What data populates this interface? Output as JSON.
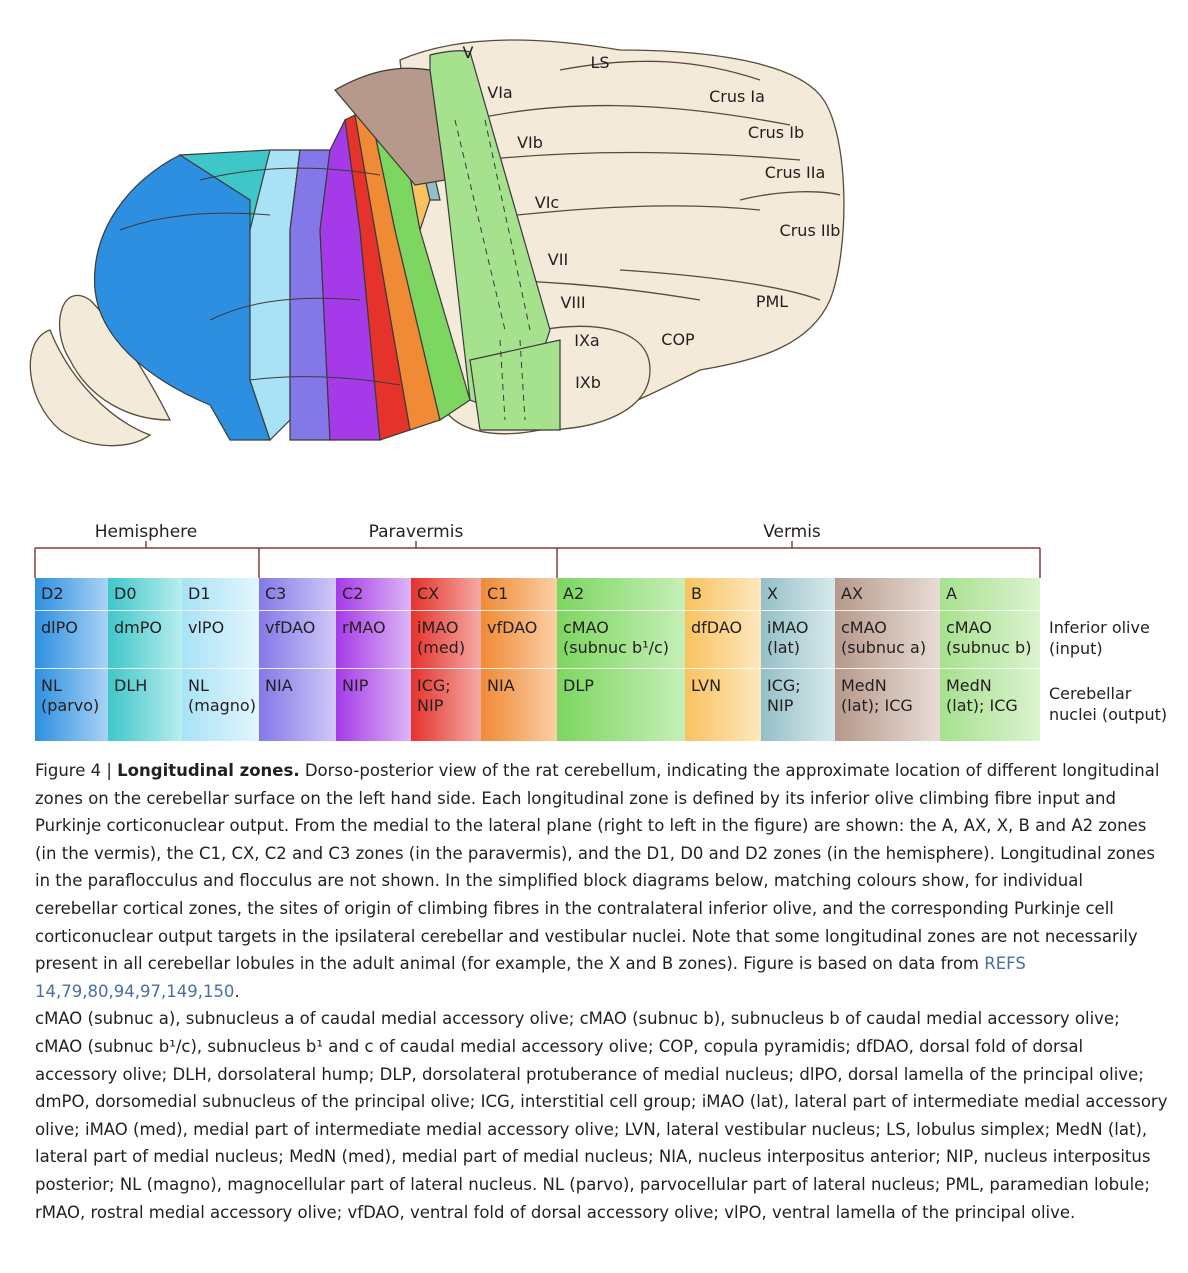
{
  "lobule_labels": [
    "V",
    "VIa",
    "VIb",
    "VIc",
    "VII",
    "VIII",
    "IXa",
    "IXb",
    "LS",
    "Crus Ia",
    "Crus Ib",
    "Crus IIa",
    "Crus IIb",
    "PML",
    "COP"
  ],
  "groups": {
    "hemisphere": "Hemisphere",
    "paravermis": "Paravermis",
    "vermis": "Vermis"
  },
  "row_labels": {
    "olive": [
      "Inferior olive",
      "(input)"
    ],
    "nuclei": [
      "Cerebellar",
      "nuclei (output)"
    ]
  },
  "zones": [
    {
      "name": "D2",
      "olive": [
        "dlPO"
      ],
      "nuclei": [
        "NL",
        "(parvo)"
      ],
      "colors": [
        "#2d8fe0",
        "#a9d3f5"
      ]
    },
    {
      "name": "D0",
      "olive": [
        "dmPO"
      ],
      "nuclei": [
        "DLH"
      ],
      "colors": [
        "#3fc6c9",
        "#b8eeee"
      ]
    },
    {
      "name": "D1",
      "olive": [
        "vlPO"
      ],
      "nuclei": [
        "NL",
        "(magno)"
      ],
      "colors": [
        "#a9e2f6",
        "#e2f6fd"
      ]
    },
    {
      "name": "C3",
      "olive": [
        "vfDAO"
      ],
      "nuclei": [
        "NIA"
      ],
      "colors": [
        "#8478e8",
        "#cfc9f7"
      ]
    },
    {
      "name": "C2",
      "olive": [
        "rMAO"
      ],
      "nuclei": [
        "NIP"
      ],
      "colors": [
        "#a53be8",
        "#dcb6f5"
      ]
    },
    {
      "name": "CX",
      "olive": [
        "iMAO",
        "(med)"
      ],
      "nuclei": [
        "ICG;",
        "NIP"
      ],
      "colors": [
        "#e5322b",
        "#f5aaa5"
      ]
    },
    {
      "name": "C1",
      "olive": [
        "vfDAO"
      ],
      "nuclei": [
        "NIA"
      ],
      "colors": [
        "#f08a35",
        "#fbcfa6"
      ]
    },
    {
      "name": "A2",
      "olive": [
        "cMAO",
        "(subnuc b¹/c)"
      ],
      "nuclei": [
        "DLP"
      ],
      "colors": [
        "#7cd65f",
        "#c6efb8"
      ]
    },
    {
      "name": "B",
      "olive": [
        "dfDAO"
      ],
      "nuclei": [
        "LVN"
      ],
      "colors": [
        "#f9c25f",
        "#fde8be"
      ]
    },
    {
      "name": "X",
      "olive": [
        "iMAO",
        "(lat)"
      ],
      "nuclei": [
        "ICG;",
        "NIP"
      ],
      "colors": [
        "#93bfc6",
        "#d8eaed"
      ]
    },
    {
      "name": "AX",
      "olive": [
        "cMAO",
        "(subnuc a)"
      ],
      "nuclei": [
        "MedN",
        "(lat); ICG"
      ],
      "colors": [
        "#b6998b",
        "#e8ddd6"
      ]
    },
    {
      "name": "A",
      "olive": [
        "cMAO",
        "(subnuc b)"
      ],
      "nuclei": [
        "MedN",
        "(lat); ICG"
      ],
      "colors": [
        "#a6e18e",
        "#dcf3d0"
      ]
    }
  ],
  "caption": {
    "figure_number": "Figure 4 | ",
    "title": "Longitudinal zones.",
    "body": " Dorso-posterior view of the rat cerebellum, indicating the approximate location of different longitudinal zones on the cerebellar surface on the left hand side. Each longitudinal zone is defined by its inferior olive climbing fibre input and Purkinje corticonuclear output. From the medial to the lateral plane (right to left in the figure) are shown: the A, AX, X, B and A2 zones (in the vermis), the C1, CX, C2 and C3 zones (in the paravermis), and the D1, D0 and D2 zones (in the hemisphere). Longitudinal zones in the paraflocculus and flocculus are not shown. In the simplified block diagrams below, matching colours show, for individual cerebellar cortical zones, the sites of origin of climbing fibres in the contralateral inferior olive, and the corresponding Purkinje cell corticonuclear output targets in the ipsilateral cerebellar and vestibular nuclei. Note that some longitudinal zones are not necessarily present in all cerebellar lobules in the adult animal (for example, the X and B zones). Figure is based on data from ",
    "refs": "REFS 14,79,80,94,97,149,150",
    "after_refs": ".",
    "abbreviations": "cMAO (subnuc a), subnucleus a of caudal medial accessory olive; cMAO (subnuc b), subnucleus b of caudal medial accessory olive; cMAO (subnuc b¹/c), subnucleus b¹ and c of caudal medial accessory olive; COP, copula pyramidis; dfDAO, dorsal fold of dorsal accessory olive; DLH, dorsolateral hump; DLP, dorsolateral protuberance of medial nucleus; dlPO, dorsal lamella of the principal olive; dmPO, dorsomedial subnucleus of the principal olive; ICG, interstitial cell group; iMAO (lat), lateral part of intermediate medial accessory olive; iMAO (med), medial part of intermediate medial accessory olive; LVN, lateral vestibular nucleus; LS, lobulus simplex; MedN (lat), lateral part of medial nucleus; MedN (med), medial part of medial nucleus; NIA, nucleus interpositus anterior; NIP, nucleus interpositus posterior; NL (magno), magnocellular part of lateral nucleus. NL (parvo), parvocellular part of lateral nucleus; PML, paramedian lobule; rMAO, rostral medial accessory olive; vfDAO, ventral fold of dorsal accessory olive; vlPO, ventral lamella of the principal olive."
  }
}
